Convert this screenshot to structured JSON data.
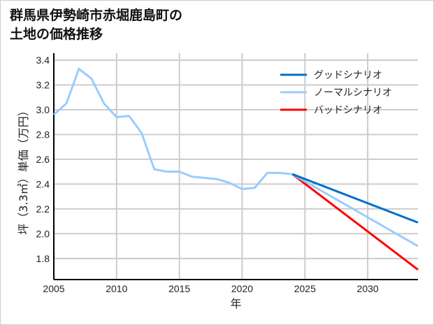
{
  "chart_data": {
    "type": "line",
    "title_lines": [
      "群馬県伊勢崎市赤堀鹿島町の",
      "土地の価格推移"
    ],
    "xlabel": "年",
    "ylabel": "坪（3.3㎡）単価（万円）",
    "xlim": [
      2005,
      2034
    ],
    "ylim": [
      1.63,
      3.4
    ],
    "xticks": [
      2005,
      2010,
      2015,
      2020,
      2025,
      2030
    ],
    "yticks": [
      1.8,
      2.0,
      2.2,
      2.4,
      2.6,
      2.8,
      3.0,
      3.2,
      3.4
    ],
    "ytick_labels": [
      "1.8",
      "2.0",
      "2.2",
      "2.4",
      "2.6",
      "2.8",
      "3.0",
      "3.2",
      "3.4"
    ],
    "grid": true,
    "legend_position": "top-right",
    "history": {
      "x": [
        2005,
        2006,
        2007,
        2008,
        2009,
        2010,
        2011,
        2012,
        2013,
        2014,
        2015,
        2016,
        2017,
        2018,
        2019,
        2020,
        2021,
        2022,
        2023,
        2024
      ],
      "y": [
        2.96,
        3.05,
        3.33,
        3.25,
        3.05,
        2.94,
        2.95,
        2.81,
        2.52,
        2.5,
        2.5,
        2.46,
        2.45,
        2.44,
        2.41,
        2.36,
        2.37,
        2.49,
        2.49,
        2.48
      ]
    },
    "series": [
      {
        "name": "グッドシナリオ",
        "color": "#0070c8",
        "x": [
          2024,
          2034
        ],
        "y": [
          2.48,
          2.09
        ]
      },
      {
        "name": "ノーマルシナリオ",
        "color": "#99ccff",
        "x": [
          2024,
          2034
        ],
        "y": [
          2.48,
          1.9
        ]
      },
      {
        "name": "バッドシナリオ",
        "color": "#ff0000",
        "x": [
          2024,
          2034
        ],
        "y": [
          2.48,
          1.71
        ]
      }
    ]
  }
}
